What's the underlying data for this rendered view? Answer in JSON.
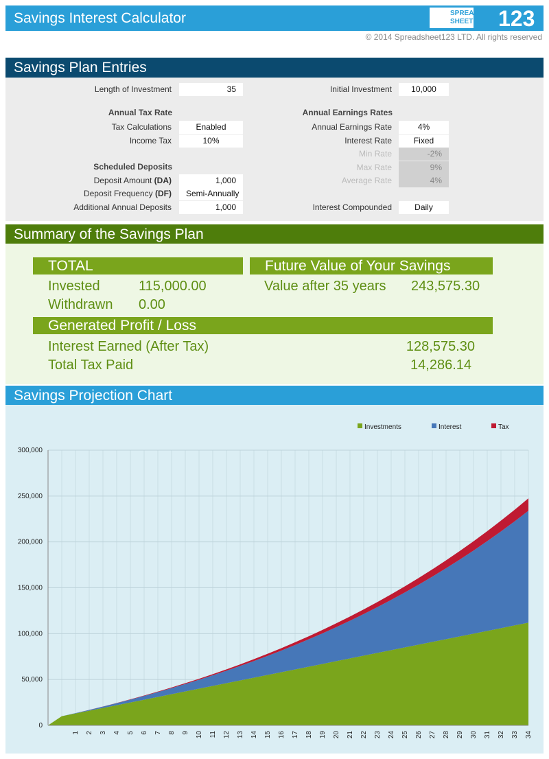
{
  "header": {
    "title": "Savings Interest Calculator",
    "logo_top": "SPREAD",
    "logo_bottom": "SHEET",
    "logo_number": "123",
    "copyright": "© 2014 Spreadsheet123 LTD. All rights reserved"
  },
  "entries": {
    "title": "Savings Plan Entries",
    "headings": [
      "Annual Tax Rate",
      "Scheduled Deposits",
      "Annual Earnings Rates"
    ],
    "rows": [
      {
        "label": "Length of Investment",
        "value": "35"
      },
      {
        "label": "Tax Calculations",
        "value": "Enabled"
      },
      {
        "label": "Income Tax",
        "value": "10%"
      },
      {
        "label": "Deposit Amount",
        "abbr": "(DA)",
        "value": "1,000"
      },
      {
        "label": "Deposit Frequency",
        "abbr": "(DF)",
        "value": "Semi-Annually"
      },
      {
        "label": "Additional Annual Deposits",
        "value": "1,000"
      },
      {
        "label": "Initial Investment",
        "value": "10,000"
      },
      {
        "label": "Annual Earnings Rate",
        "value": "4%"
      },
      {
        "label": "Interest Rate",
        "value": "Fixed"
      },
      {
        "label": "Min Rate",
        "value": "-2%"
      },
      {
        "label": "Max Rate",
        "value": "9%"
      },
      {
        "label": "Average Rate",
        "value": "4%"
      },
      {
        "label": "Interest Compounded",
        "value": "Daily"
      }
    ]
  },
  "summary": {
    "title": "Summary of the Savings Plan",
    "total": {
      "heading": "TOTAL",
      "invested_label": "Invested",
      "invested": "115,000.00",
      "withdrawn_label": "Withdrawn",
      "withdrawn": "0.00"
    },
    "future": {
      "heading": "Future Value of Your Savings",
      "label": "Value after 35 years",
      "value": "243,575.30"
    },
    "profit": {
      "heading": "Generated Profit / Loss",
      "interest_label": "Interest Earned (After Tax)",
      "interest": "128,575.30",
      "tax_label": "Total Tax Paid",
      "tax": "14,286.14"
    }
  },
  "chart_data": {
    "type": "area",
    "stacked": true,
    "title": "Savings Projection Chart",
    "categories": [
      null,
      null,
      1,
      2,
      3,
      4,
      5,
      6,
      7,
      8,
      9,
      10,
      11,
      12,
      13,
      14,
      15,
      16,
      17,
      18,
      19,
      20,
      21,
      22,
      23,
      24,
      25,
      26,
      27,
      28,
      29,
      30,
      31,
      32,
      33,
      34
    ],
    "series": [
      {
        "name": "Investments",
        "color": "#7aa51c",
        "values": [
          0,
          10000,
          13000,
          16000,
          19000,
          22000,
          25000,
          28000,
          31000,
          34000,
          37000,
          40000,
          43000,
          46000,
          49000,
          52000,
          55000,
          58000,
          61000,
          64000,
          67000,
          70000,
          73000,
          76000,
          79000,
          82000,
          85000,
          88000,
          91000,
          94000,
          97000,
          100000,
          103000,
          106000,
          109000,
          112000
        ]
      },
      {
        "name": "Interest",
        "color": "#4677b8",
        "values": [
          0,
          0,
          360,
          842,
          1452,
          2194,
          3074,
          4097,
          5269,
          6595,
          8084,
          9739,
          11569,
          13579,
          15778,
          18173,
          20772,
          23583,
          26615,
          29875,
          33374,
          37121,
          41126,
          45399,
          49951,
          54793,
          59936,
          65394,
          71177,
          77301,
          83777,
          90620,
          97844,
          105467,
          113501,
          121965
        ]
      },
      {
        "name": "Tax",
        "color": "#bf1a32",
        "values": [
          0,
          0,
          40,
          94,
          161,
          244,
          342,
          455,
          585,
          733,
          898,
          1082,
          1285,
          1509,
          1753,
          2019,
          2308,
          2620,
          2957,
          3319,
          3708,
          4125,
          4570,
          5044,
          5550,
          6088,
          6660,
          7266,
          7909,
          8589,
          9309,
          10069,
          10872,
          11719,
          12611,
          13552
        ]
      }
    ],
    "ylim": [
      0,
      300000
    ],
    "yticks": [
      0,
      {
        "value": 50000,
        "label": "50,000"
      },
      {
        "value": 100000,
        "label": "100,000"
      },
      {
        "value": 150000,
        "label": "150,000"
      },
      {
        "value": 200000,
        "label": "200,000"
      },
      {
        "value": 250000,
        "label": "250,000"
      },
      {
        "value": 300000,
        "label": "300,000"
      }
    ],
    "grid": true,
    "legend": "top-right"
  }
}
